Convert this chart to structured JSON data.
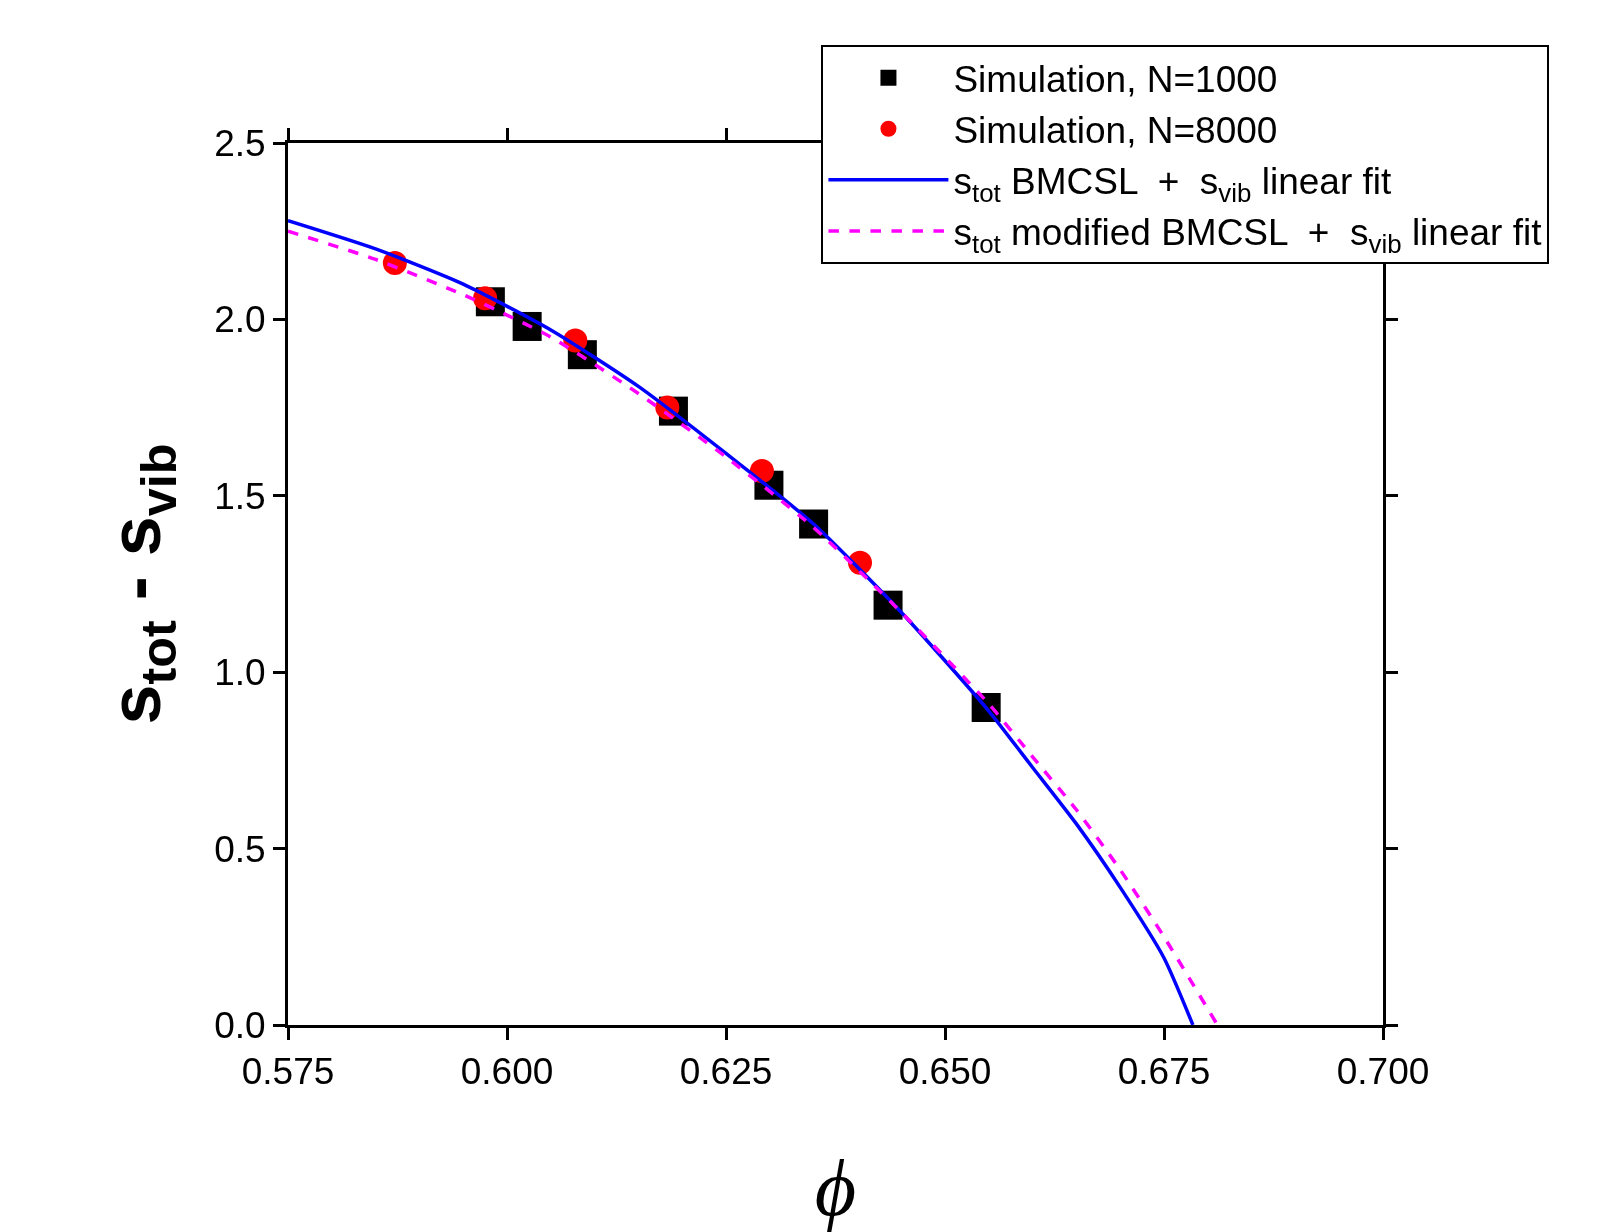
{
  "chart_data": {
    "type": "scatter",
    "xlabel": "ϕ",
    "ylabel": "s$_{tot}$ - s$_{vib}$",
    "xlim": [
      0.575,
      0.7
    ],
    "ylim": [
      0,
      2.5
    ],
    "xticks": [
      0.575,
      {
        "value": 0.6,
        "label": "0.600"
      },
      0.625,
      {
        "value": 0.65,
        "label": "0.650"
      },
      0.675,
      {
        "value": 0.7,
        "label": "0.700"
      }
    ],
    "yticks": [
      {
        "value": 0,
        "label": "0.0"
      },
      0.5,
      {
        "value": 1,
        "label": "1.0"
      },
      1.5,
      {
        "value": 2,
        "label": "2.0"
      },
      2.5
    ],
    "grid": false,
    "legend": "top right",
    "series": [
      {
        "name": "Simulation, N=1000",
        "marker": "square",
        "color": "#000000",
        "x": [
          0.5981,
          0.6023,
          0.6086,
          0.619,
          0.6299,
          0.635,
          0.6435,
          0.6547
        ],
        "values": [
          2.05,
          1.98,
          1.9,
          1.74,
          1.53,
          1.42,
          1.19,
          0.9
        ]
      },
      {
        "name": "Simulation, N=8000",
        "marker": "circle",
        "color": "#ff0000",
        "x": [
          0.5872,
          0.5975,
          0.6078,
          0.6183,
          0.6291,
          0.6403
        ],
        "values": [
          2.16,
          2.06,
          1.94,
          1.75,
          1.57,
          1.31
        ]
      },
      {
        "name": "s$_{tot}$ BMCSL  +  s$_{vib}$ linear fit",
        "type": "line",
        "line_style": "solid",
        "color": "#0000ff",
        "x": [
          0.575,
          0.585,
          0.595,
          0.605,
          0.615,
          0.625,
          0.635,
          0.645,
          0.655,
          0.66,
          0.665,
          0.67,
          0.675,
          0.6783
        ],
        "values": [
          2.28,
          2.2,
          2.1,
          1.97,
          1.81,
          1.62,
          1.42,
          1.17,
          0.89,
          0.73,
          0.57,
          0.39,
          0.19,
          0
        ]
      },
      {
        "name": "s$_{tot}$ modified BMCSL  +  s$_{vib}$ linear fit",
        "type": "line",
        "line_style": "dashed",
        "color": "#ff00ff",
        "x": [
          0.575,
          0.585,
          0.595,
          0.605,
          0.615,
          0.625,
          0.635,
          0.645,
          0.655,
          0.66,
          0.665,
          0.67,
          0.675,
          0.6811
        ],
        "values": [
          2.25,
          2.17,
          2.07,
          1.95,
          1.79,
          1.61,
          1.41,
          1.17,
          0.91,
          0.76,
          0.61,
          0.44,
          0.25,
          0
        ]
      }
    ]
  }
}
